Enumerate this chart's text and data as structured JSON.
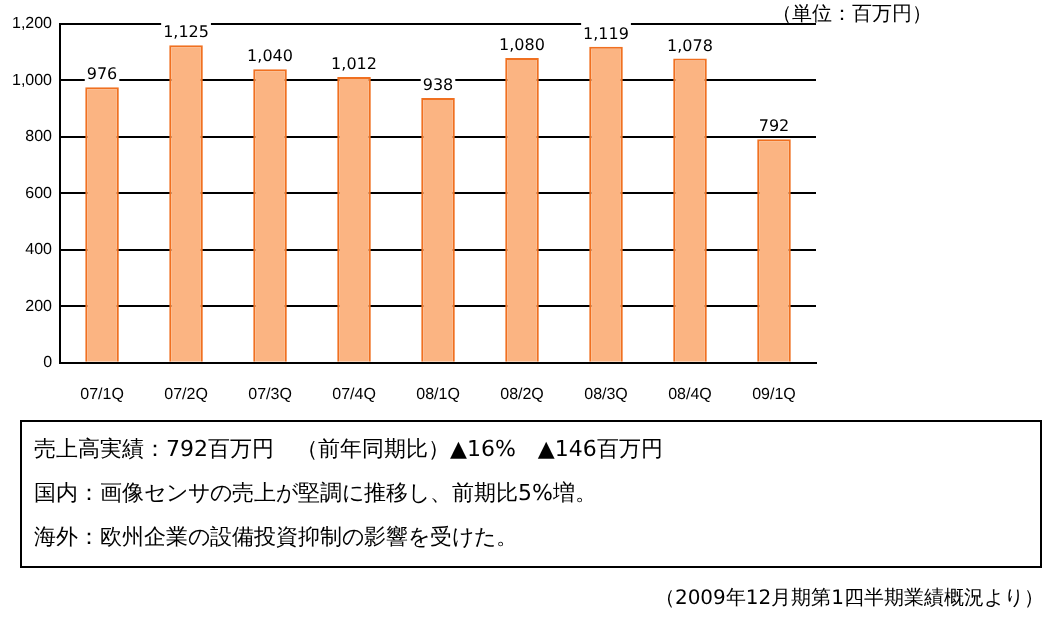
{
  "chart_data": {
    "type": "bar",
    "ylabel": "（単位：百万円）",
    "categories": [
      "07/1Q",
      "07/2Q",
      "07/3Q",
      "07/4Q",
      "08/1Q",
      "08/2Q",
      "08/3Q",
      "08/4Q",
      "09/1Q"
    ],
    "values": [
      976,
      1125,
      1040,
      1012,
      938,
      1080,
      1119,
      1078,
      792
    ],
    "color": "#fbb482",
    "ylim": [
      0,
      1200
    ],
    "yticks": [
      0,
      {
        "value": 200,
        "label": "200"
      },
      {
        "value": 400,
        "label": "400"
      },
      {
        "value": 600,
        "label": "600"
      },
      {
        "value": 800,
        "label": "800"
      },
      {
        "value": 1000,
        "label": "1,000"
      },
      {
        "value": 1200,
        "label": "1,200"
      }
    ],
    "grid": "y",
    "data_labels": true,
    "legend": false,
    "value_labels": [
      "976",
      "1,125",
      "1,040",
      "1,012",
      "938",
      "1,080",
      "1,119",
      "1,078",
      "792"
    ],
    "annotations": [
      "売上高実績：792百万円　（前年同期比）▲16%　▲146百万円",
      "国内：画像センサの売上が堅調に推移し、前期比5%増。",
      "海外：欧州企業の設備投資抑制の影響を受けた。",
      "（2009年12月期第1四半期業績概況より）"
    ]
  }
}
